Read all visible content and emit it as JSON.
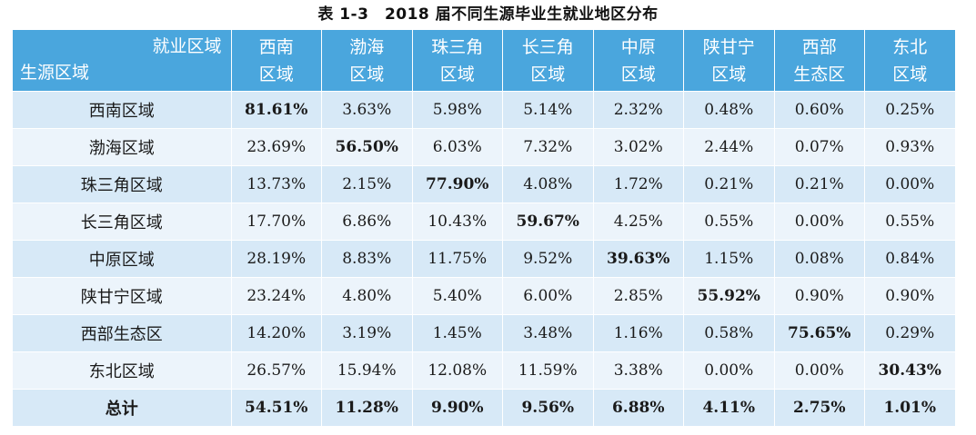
{
  "caption": "表 1-3　2018 届不同生源毕业生就业地区分布",
  "header": {
    "corner_top": "就业区域",
    "corner_bottom": "生源区域",
    "columns": [
      [
        "西南",
        "区域"
      ],
      [
        "渤海",
        "区域"
      ],
      [
        "珠三角",
        "区域"
      ],
      [
        "长三角",
        "区域"
      ],
      [
        "中原",
        "区域"
      ],
      [
        "陕甘宁",
        "区域"
      ],
      [
        "西部",
        "生态区"
      ],
      [
        "东北",
        "区域"
      ]
    ]
  },
  "rows": [
    {
      "label": "西南区域",
      "values": [
        "81.61%",
        "3.63%",
        "5.98%",
        "5.14%",
        "2.32%",
        "0.48%",
        "0.60%",
        "0.25%"
      ],
      "bold_index": 0
    },
    {
      "label": "渤海区域",
      "values": [
        "23.69%",
        "56.50%",
        "6.03%",
        "7.32%",
        "3.02%",
        "2.44%",
        "0.07%",
        "0.93%"
      ],
      "bold_index": 1
    },
    {
      "label": "珠三角区域",
      "values": [
        "13.73%",
        "2.15%",
        "77.90%",
        "4.08%",
        "1.72%",
        "0.21%",
        "0.21%",
        "0.00%"
      ],
      "bold_index": 2
    },
    {
      "label": "长三角区域",
      "values": [
        "17.70%",
        "6.86%",
        "10.43%",
        "59.67%",
        "4.25%",
        "0.55%",
        "0.00%",
        "0.55%"
      ],
      "bold_index": 3
    },
    {
      "label": "中原区域",
      "values": [
        "28.19%",
        "8.83%",
        "11.75%",
        "9.52%",
        "39.63%",
        "1.15%",
        "0.08%",
        "0.84%"
      ],
      "bold_index": 4
    },
    {
      "label": "陕甘宁区域",
      "values": [
        "23.24%",
        "4.80%",
        "5.40%",
        "6.00%",
        "2.85%",
        "55.92%",
        "0.90%",
        "0.90%"
      ],
      "bold_index": 5
    },
    {
      "label": "西部生态区",
      "values": [
        "14.20%",
        "3.19%",
        "1.45%",
        "3.48%",
        "1.16%",
        "0.58%",
        "75.65%",
        "0.29%"
      ],
      "bold_index": 6
    },
    {
      "label": "东北区域",
      "values": [
        "26.57%",
        "15.94%",
        "12.08%",
        "11.59%",
        "3.38%",
        "0.00%",
        "0.00%",
        "30.43%"
      ],
      "bold_index": 7
    }
  ],
  "total": {
    "label": "总计",
    "values": [
      "54.51%",
      "11.28%",
      "9.90%",
      "9.56%",
      "6.88%",
      "4.11%",
      "2.75%",
      "1.01%"
    ]
  },
  "colors": {
    "header_bg": "#4aa6dd",
    "row_odd": "#d7e9f7",
    "row_even": "#ecf4fb"
  }
}
